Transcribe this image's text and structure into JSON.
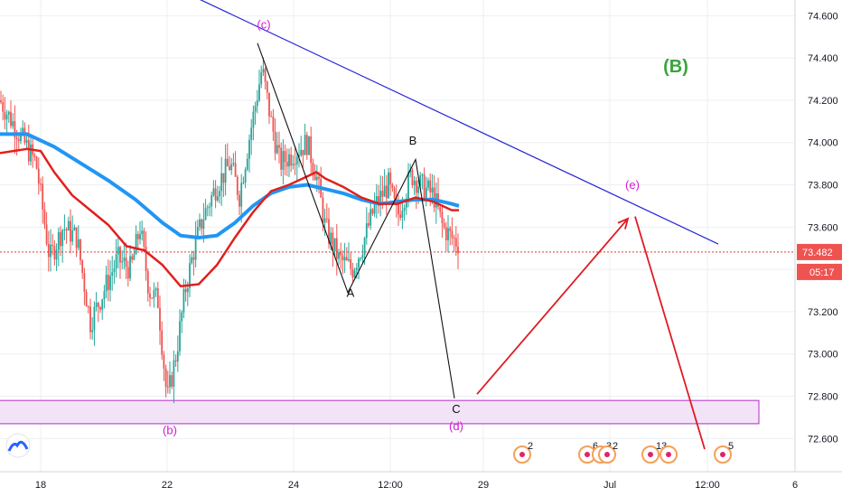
{
  "colors": {
    "ma_slow": "#2196f3",
    "ma_fast": "#e0201d",
    "candle_up": "#26a69a",
    "candle_down": "#ef5350",
    "trendline": "#2424d8",
    "projection": "#e01b24",
    "zone_fill": "#f3e3f7",
    "zone_stroke": "#b12fc7",
    "wave_magenta": "#d21bd2",
    "wave_black": "#111111",
    "group_label": "#3aa43a",
    "price_line": "#e53935",
    "price_tag": "#ef5350",
    "axis_text": "#131722",
    "grid": "#eceff3"
  },
  "chart_data": {
    "type": "candlestick",
    "instrument_note": "",
    "y_ticks": [
      74.6,
      74.4,
      74.2,
      74.0,
      73.8,
      73.6,
      73.4,
      73.2,
      73.0,
      72.8,
      72.6
    ],
    "ylim": [
      72.52,
      74.64
    ],
    "x_ticks": [
      {
        "label": "18",
        "t": 0.045
      },
      {
        "label": "22",
        "t": 0.185
      },
      {
        "label": "24",
        "t": 0.325
      },
      {
        "label": "12:00",
        "t": 0.432
      },
      {
        "label": "29",
        "t": 0.535
      },
      {
        "label": "Jul",
        "t": 0.675
      },
      {
        "label": "12:00",
        "t": 0.783
      },
      {
        "label": "6",
        "t": 0.88
      }
    ],
    "last_price": {
      "value": "73.482",
      "countdown": "05:17"
    },
    "group_label": "(B)",
    "wave_labels": [
      {
        "text": "(c)",
        "t": 0.292,
        "price": 74.54,
        "color": "wave_magenta"
      },
      {
        "text": "(b)",
        "t": 0.188,
        "price": 72.62,
        "color": "wave_magenta"
      },
      {
        "text": "(d)",
        "t": 0.505,
        "price": 72.64,
        "color": "wave_magenta"
      },
      {
        "text": "(e)",
        "t": 0.7,
        "price": 73.78,
        "color": "wave_magenta"
      },
      {
        "text": "A",
        "t": 0.388,
        "price": 73.27,
        "color": "wave_black"
      },
      {
        "text": "B",
        "t": 0.457,
        "price": 73.99,
        "color": "wave_black"
      },
      {
        "text": "C",
        "t": 0.505,
        "price": 72.72,
        "color": "wave_black"
      }
    ],
    "trendline": [
      {
        "t": 0.17,
        "price": 74.78
      },
      {
        "t": 0.795,
        "price": 73.52
      }
    ],
    "black_path": [
      {
        "t": 0.285,
        "price": 74.47
      },
      {
        "t": 0.385,
        "price": 73.29
      },
      {
        "t": 0.46,
        "price": 73.92
      },
      {
        "t": 0.503,
        "price": 72.79
      }
    ],
    "red_arrow_up": [
      {
        "t": 0.528,
        "price": 72.81
      },
      {
        "t": 0.695,
        "price": 73.64
      }
    ],
    "red_down": [
      {
        "t": 0.703,
        "price": 73.65
      },
      {
        "t": 0.78,
        "price": 72.55
      }
    ],
    "zone": {
      "price_top": 72.78,
      "price_bottom": 72.67,
      "t_start": 0.0,
      "t_end": 0.84
    },
    "ma_slow": [
      [
        0.0,
        74.04
      ],
      [
        0.03,
        74.04
      ],
      [
        0.06,
        73.98
      ],
      [
        0.09,
        73.9
      ],
      [
        0.12,
        73.82
      ],
      [
        0.15,
        73.73
      ],
      [
        0.18,
        73.62
      ],
      [
        0.2,
        73.56
      ],
      [
        0.22,
        73.55
      ],
      [
        0.24,
        73.56
      ],
      [
        0.26,
        73.62
      ],
      [
        0.28,
        73.7
      ],
      [
        0.3,
        73.76
      ],
      [
        0.32,
        73.79
      ],
      [
        0.34,
        73.8
      ],
      [
        0.36,
        73.78
      ],
      [
        0.38,
        73.76
      ],
      [
        0.4,
        73.73
      ],
      [
        0.42,
        73.71
      ],
      [
        0.44,
        73.72
      ],
      [
        0.46,
        73.73
      ],
      [
        0.48,
        73.73
      ],
      [
        0.5,
        73.71
      ],
      [
        0.508,
        73.7
      ]
    ],
    "ma_fast": [
      [
        0.0,
        73.95
      ],
      [
        0.03,
        73.97
      ],
      [
        0.045,
        73.96
      ],
      [
        0.06,
        73.86
      ],
      [
        0.08,
        73.75
      ],
      [
        0.1,
        73.68
      ],
      [
        0.12,
        73.61
      ],
      [
        0.14,
        73.51
      ],
      [
        0.16,
        73.49
      ],
      [
        0.18,
        73.42
      ],
      [
        0.2,
        73.32
      ],
      [
        0.22,
        73.33
      ],
      [
        0.24,
        73.42
      ],
      [
        0.26,
        73.55
      ],
      [
        0.28,
        73.67
      ],
      [
        0.3,
        73.77
      ],
      [
        0.32,
        73.8
      ],
      [
        0.34,
        73.84
      ],
      [
        0.35,
        73.86
      ],
      [
        0.36,
        73.83
      ],
      [
        0.38,
        73.79
      ],
      [
        0.4,
        73.74
      ],
      [
        0.42,
        73.71
      ],
      [
        0.44,
        73.71
      ],
      [
        0.46,
        73.74
      ],
      [
        0.48,
        73.72
      ],
      [
        0.5,
        73.68
      ],
      [
        0.508,
        73.68
      ]
    ],
    "candles_anchor": [
      [
        0.0,
        74.2
      ],
      [
        0.02,
        74.05
      ],
      [
        0.04,
        73.9
      ],
      [
        0.055,
        73.45
      ],
      [
        0.07,
        73.6
      ],
      [
        0.085,
        73.55
      ],
      [
        0.1,
        73.15
      ],
      [
        0.115,
        73.3
      ],
      [
        0.13,
        73.45
      ],
      [
        0.145,
        73.4
      ],
      [
        0.155,
        73.6
      ],
      [
        0.165,
        73.3
      ],
      [
        0.175,
        73.25
      ],
      [
        0.185,
        72.78
      ],
      [
        0.195,
        73.0
      ],
      [
        0.205,
        73.3
      ],
      [
        0.215,
        73.5
      ],
      [
        0.225,
        73.65
      ],
      [
        0.24,
        73.8
      ],
      [
        0.255,
        73.9
      ],
      [
        0.265,
        73.75
      ],
      [
        0.275,
        74.0
      ],
      [
        0.29,
        74.35
      ],
      [
        0.3,
        74.1
      ],
      [
        0.31,
        73.9
      ],
      [
        0.325,
        73.95
      ],
      [
        0.34,
        74.0
      ],
      [
        0.35,
        73.85
      ],
      [
        0.36,
        73.6
      ],
      [
        0.375,
        73.45
      ],
      [
        0.39,
        73.4
      ],
      [
        0.4,
        73.5
      ],
      [
        0.415,
        73.7
      ],
      [
        0.43,
        73.8
      ],
      [
        0.44,
        73.65
      ],
      [
        0.455,
        73.85
      ],
      [
        0.465,
        73.8
      ],
      [
        0.48,
        73.75
      ],
      [
        0.49,
        73.6
      ],
      [
        0.5,
        73.55
      ],
      [
        0.508,
        73.52
      ]
    ],
    "event_markers": [
      {
        "t": 0.578,
        "count": "2"
      },
      {
        "t": 0.65,
        "count": "6"
      },
      {
        "t": 0.665,
        "count": "3"
      },
      {
        "t": 0.672,
        "count": "2"
      },
      {
        "t": 0.72,
        "count": "13"
      },
      {
        "t": 0.74,
        "count": ""
      },
      {
        "t": 0.8,
        "count": "5"
      }
    ]
  }
}
